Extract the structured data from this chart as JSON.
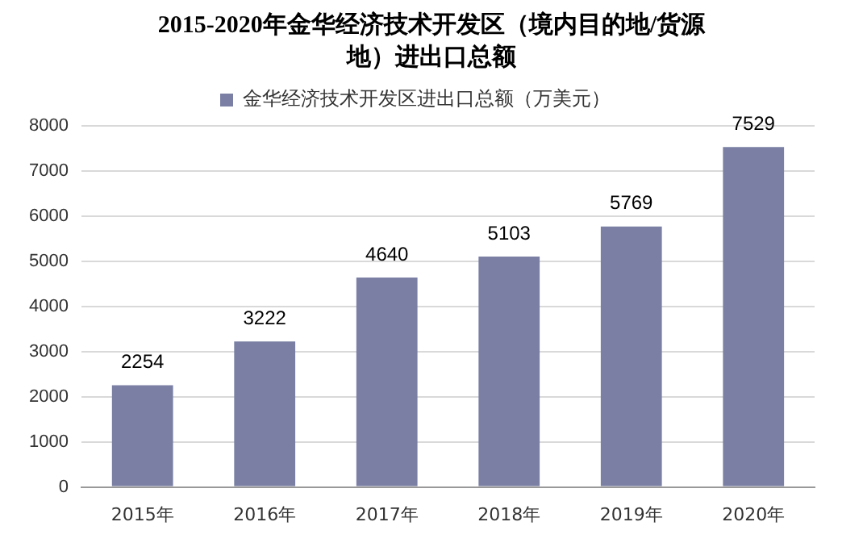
{
  "chart_data": {
    "type": "bar",
    "title": "2015-2020年金华经济技术开发区（境内目的地/货源地）进出口总额",
    "categories": [
      "2015年",
      "2016年",
      "2017年",
      "2018年",
      "2019年",
      "2020年"
    ],
    "series": [
      {
        "name": "金华经济技术开发区进出口总额（万美元）",
        "color": "#7a7fa3",
        "values": [
          2254,
          3222,
          4640,
          5103,
          5769,
          7529
        ]
      }
    ],
    "ylim": [
      0,
      8000
    ],
    "yticks": [
      0,
      1000,
      2000,
      3000,
      4000,
      5000,
      6000,
      7000,
      8000
    ],
    "grid": "y",
    "legend": "top",
    "data_labels": true
  }
}
